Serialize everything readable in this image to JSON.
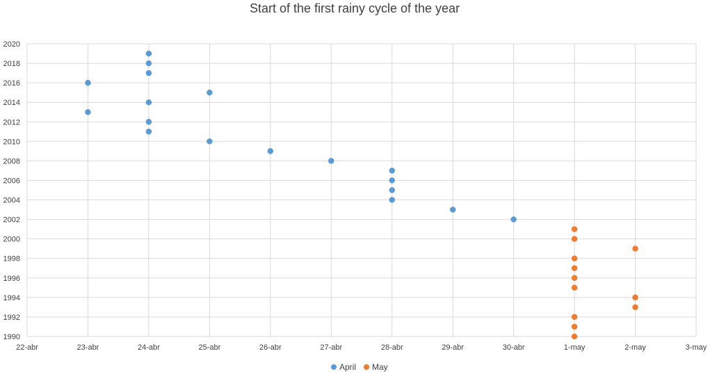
{
  "chart_data": {
    "type": "scatter",
    "title": "Start of the first rainy cycle of the year",
    "xlabel": "",
    "ylabel": "",
    "x_categories": [
      "22-abr",
      "23-abr",
      "24-abr",
      "25-abr",
      "26-abr",
      "27-abr",
      "28-abr",
      "29-abr",
      "30-abr",
      "1-may",
      "2-may",
      "3-may"
    ],
    "y_ticks": [
      1990,
      1992,
      1994,
      1996,
      1998,
      2000,
      2002,
      2004,
      2006,
      2008,
      2010,
      2012,
      2014,
      2016,
      2018,
      2020
    ],
    "ylim": [
      1990,
      2020
    ],
    "grid": true,
    "legend_position": "bottom",
    "series": [
      {
        "name": "April",
        "color": "#5b9bd5",
        "points": [
          {
            "x": "23-abr",
            "y": 2016
          },
          {
            "x": "23-abr",
            "y": 2013
          },
          {
            "x": "24-abr",
            "y": 2019
          },
          {
            "x": "24-abr",
            "y": 2018
          },
          {
            "x": "24-abr",
            "y": 2017
          },
          {
            "x": "24-abr",
            "y": 2014
          },
          {
            "x": "24-abr",
            "y": 2012
          },
          {
            "x": "24-abr",
            "y": 2011
          },
          {
            "x": "25-abr",
            "y": 2015
          },
          {
            "x": "25-abr",
            "y": 2010
          },
          {
            "x": "26-abr",
            "y": 2009
          },
          {
            "x": "27-abr",
            "y": 2008
          },
          {
            "x": "28-abr",
            "y": 2007
          },
          {
            "x": "28-abr",
            "y": 2006
          },
          {
            "x": "28-abr",
            "y": 2005
          },
          {
            "x": "28-abr",
            "y": 2004
          },
          {
            "x": "29-abr",
            "y": 2003
          },
          {
            "x": "30-abr",
            "y": 2002
          }
        ]
      },
      {
        "name": "May",
        "color": "#ed7d31",
        "points": [
          {
            "x": "1-may",
            "y": 2001
          },
          {
            "x": "1-may",
            "y": 2000
          },
          {
            "x": "1-may",
            "y": 1998
          },
          {
            "x": "1-may",
            "y": 1997
          },
          {
            "x": "1-may",
            "y": 1996
          },
          {
            "x": "1-may",
            "y": 1995
          },
          {
            "x": "1-may",
            "y": 1992
          },
          {
            "x": "1-may",
            "y": 1991
          },
          {
            "x": "1-may",
            "y": 1990
          },
          {
            "x": "2-may",
            "y": 1999
          },
          {
            "x": "2-may",
            "y": 1994
          },
          {
            "x": "2-may",
            "y": 1993
          }
        ]
      }
    ]
  }
}
